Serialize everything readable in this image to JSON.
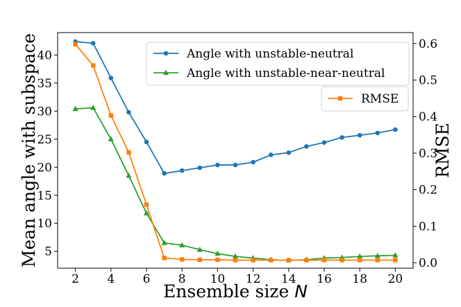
{
  "chart_data": {
    "type": "line",
    "xlabel": "Ensemble size",
    "xlabel_var": "N",
    "ylabel_left": "Mean angle with subspace",
    "ylabel_right": "RMSE",
    "xlim": [
      1.0,
      21.0
    ],
    "ylim_left": [
      2.0,
      44.0
    ],
    "ylim_right": [
      -0.015,
      0.63
    ],
    "xticks": [
      2,
      4,
      6,
      8,
      10,
      12,
      14,
      16,
      18,
      20
    ],
    "yticks_left": [
      5,
      10,
      15,
      20,
      25,
      30,
      35,
      40
    ],
    "yticks_right": [
      0.0,
      0.1,
      0.2,
      0.3,
      0.4,
      0.5,
      0.6
    ],
    "grid": false,
    "x": [
      2,
      3,
      4,
      5,
      6,
      7,
      8,
      9,
      10,
      11,
      12,
      13,
      14,
      15,
      16,
      17,
      18,
      19,
      20
    ],
    "series": [
      {
        "name": "Angle with unstable-neutral",
        "axis": "left",
        "color": "#1f77b4",
        "marker": "circle",
        "values": [
          42.4,
          42.1,
          35.9,
          29.8,
          24.5,
          18.9,
          19.4,
          19.9,
          20.4,
          20.4,
          20.9,
          22.2,
          22.6,
          23.7,
          24.4,
          25.3,
          25.7,
          26.1,
          26.7
        ]
      },
      {
        "name": "Angle with unstable-near-neutral",
        "axis": "left",
        "color": "#2ca02c",
        "marker": "triangle",
        "values": [
          30.4,
          30.6,
          25.0,
          18.5,
          11.8,
          6.5,
          6.1,
          5.3,
          4.6,
          4.1,
          3.8,
          3.5,
          3.4,
          3.5,
          3.8,
          3.9,
          4.1,
          4.2,
          4.3
        ]
      },
      {
        "name": "RMSE",
        "axis": "right",
        "color": "#ff7f0e",
        "marker": "square",
        "values": [
          0.598,
          0.54,
          0.403,
          0.302,
          0.159,
          0.013,
          0.009,
          0.008,
          0.008,
          0.007,
          0.007,
          0.007,
          0.007,
          0.007,
          0.007,
          0.007,
          0.007,
          0.007,
          0.007
        ]
      }
    ],
    "legend": {
      "left_placement": "top-right",
      "right_placement": "right"
    }
  }
}
